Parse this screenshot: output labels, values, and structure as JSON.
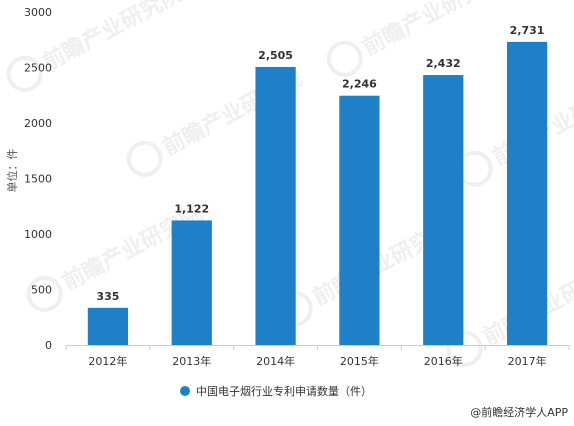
{
  "chart_data": {
    "type": "bar",
    "categories": [
      "2012年",
      "2013年",
      "2014年",
      "2015年",
      "2016年",
      "2017年"
    ],
    "series": [
      {
        "name": "中国电子烟行业专利申请数量（件）",
        "values": [
          335,
          1122,
          2505,
          2246,
          2432,
          2731
        ],
        "value_labels": [
          "335",
          "1,122",
          "2,505",
          "2,246",
          "2,432",
          "2,731"
        ],
        "color": "#1f80c8"
      }
    ],
    "ylabel": "单位：件",
    "ylim": [
      0,
      3000
    ],
    "yticks": [
      0,
      500,
      1000,
      1500,
      2000,
      2500,
      3000
    ],
    "grid": false,
    "legend_position": "bottom-center"
  },
  "source": "@前瞻经济学人APP",
  "watermark": "前瞻产业研究院"
}
